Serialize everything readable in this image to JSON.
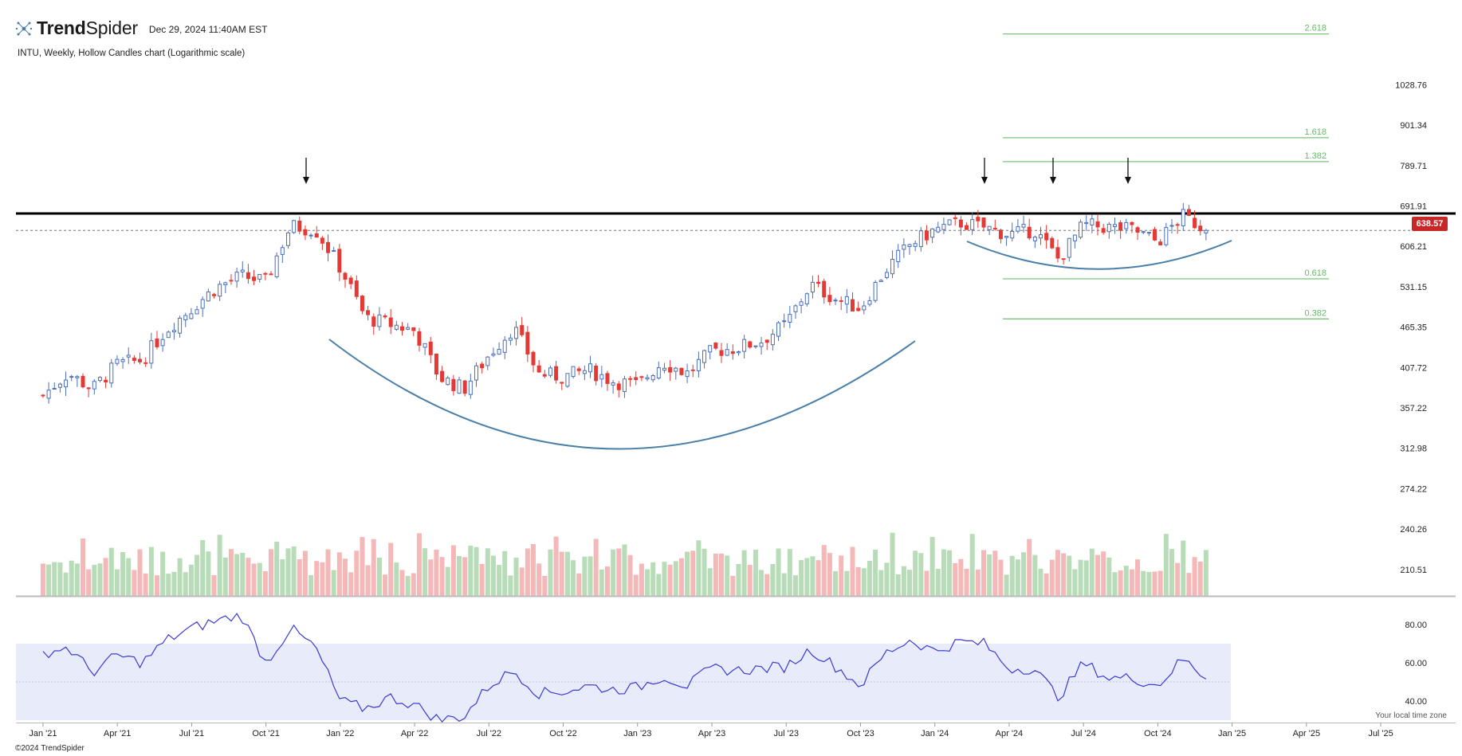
{
  "header": {
    "brand_bold": "Trend",
    "brand_regular": "Spider",
    "datetime": "Dec 29, 2024 11:40AM EST",
    "subtitle": "INTU, Weekly, Hollow Candles chart (Logarithmic scale)"
  },
  "footer": {
    "copyright": "©2024 TrendSpider",
    "timezone_label": "Your local time zone"
  },
  "colors": {
    "up": "#4a6fbd",
    "down": "#e53935",
    "volume_up": "#b8dcb8",
    "volume_down": "#f5b8b8",
    "fib": "#7cc47c",
    "arc": "#4a7fa8",
    "rsi_line": "#3a3ad0",
    "rsi_band": "#e8ecfa"
  },
  "chart_data": {
    "type": "candlestick",
    "symbol": "INTU",
    "timeframe": "Weekly",
    "scale": "log",
    "last_price": 638.57,
    "last_price_label": "638.57",
    "price_axis_ticks": [
      "1028.76",
      "901.34",
      "789.71",
      "691.91",
      "606.21",
      "531.15",
      "465.35",
      "407.72",
      "357.22",
      "312.98",
      "274.22",
      "240.26",
      "210.51"
    ],
    "time_axis_ticks": [
      "Jan '21",
      "Apr '21",
      "Jul '21",
      "Oct '21",
      "Jan '22",
      "Apr '22",
      "Jul '22",
      "Oct '22",
      "Jan '23",
      "Apr '23",
      "Jul '23",
      "Oct '23",
      "Jan '24",
      "Apr '24",
      "Jul '24",
      "Oct '24",
      "Jan '25",
      "Apr '25",
      "Jul '25"
    ],
    "price_anchors": [
      [
        "Jan '21",
        372
      ],
      [
        "Feb '21",
        400
      ],
      [
        "Mar '21",
        380
      ],
      [
        "Apr '21",
        412
      ],
      [
        "May '21",
        418
      ],
      [
        "Jun '21",
        462
      ],
      [
        "Jul '21",
        495
      ],
      [
        "Aug '21",
        530
      ],
      [
        "Sep '21",
        550
      ],
      [
        "Oct '21",
        540
      ],
      [
        "Nov '21",
        648
      ],
      [
        "Dec '21",
        640
      ],
      [
        "Jan '22",
        565
      ],
      [
        "Feb '22",
        480
      ],
      [
        "Mar '22",
        470
      ],
      [
        "Apr '22",
        460
      ],
      [
        "May '22",
        395
      ],
      [
        "Jun '22",
        380
      ],
      [
        "Jul '22",
        425
      ],
      [
        "Aug '22",
        465
      ],
      [
        "Sep '22",
        400
      ],
      [
        "Oct '22",
        395
      ],
      [
        "Nov '22",
        405
      ],
      [
        "Dec '22",
        390
      ],
      [
        "Jan '23",
        385
      ],
      [
        "Feb '23",
        415
      ],
      [
        "Mar '23",
        400
      ],
      [
        "Apr '23",
        430
      ],
      [
        "May '23",
        435
      ],
      [
        "Jun '23",
        445
      ],
      [
        "Jul '23",
        470
      ],
      [
        "Aug '23",
        535
      ],
      [
        "Sep '23",
        510
      ],
      [
        "Oct '23",
        495
      ],
      [
        "Nov '23",
        560
      ],
      [
        "Dec '23",
        610
      ],
      [
        "Jan '24",
        640
      ],
      [
        "Feb '24",
        655
      ],
      [
        "Mar '24",
        645
      ],
      [
        "Apr '24",
        630
      ],
      [
        "May '24",
        640
      ],
      [
        "Jun '24",
        580
      ],
      [
        "Jul '24",
        650
      ],
      [
        "Aug '24",
        645
      ],
      [
        "Sep '24",
        640
      ],
      [
        "Oct '24",
        615
      ],
      [
        "Nov '24",
        670
      ],
      [
        "Dec '24",
        638.57
      ]
    ],
    "resistance_level": 675,
    "fibonacci_levels": [
      {
        "label": "2.618",
        "price": 1215
      },
      {
        "label": "1.618",
        "price": 865
      },
      {
        "label": "1.382",
        "price": 800
      },
      {
        "label": "0.618",
        "price": 545
      },
      {
        "label": "0.382",
        "price": 478
      }
    ],
    "rsi": {
      "axis_ticks": [
        "80.00",
        "60.00",
        "40.00"
      ],
      "band": [
        30,
        70
      ],
      "anchors": [
        [
          "Jan '21",
          65
        ],
        [
          "Feb '21",
          68
        ],
        [
          "Mar '21",
          55
        ],
        [
          "Apr '21",
          64
        ],
        [
          "May '21",
          60
        ],
        [
          "Jun '21",
          72
        ],
        [
          "Jul '21",
          78
        ],
        [
          "Aug '21",
          82
        ],
        [
          "Sep '21",
          85
        ],
        [
          "Oct '21",
          60
        ],
        [
          "Nov '21",
          78
        ],
        [
          "Dec '21",
          68
        ],
        [
          "Jan '22",
          40
        ],
        [
          "Feb '22",
          36
        ],
        [
          "Mar '22",
          42
        ],
        [
          "Apr '22",
          38
        ],
        [
          "May '22",
          30
        ],
        [
          "Jun '22",
          32
        ],
        [
          "Jul '22",
          48
        ],
        [
          "Aug '22",
          56
        ],
        [
          "Sep '22",
          44
        ],
        [
          "Oct '22",
          45
        ],
        [
          "Nov '22",
          48
        ],
        [
          "Dec '22",
          46
        ],
        [
          "Jan '23",
          47
        ],
        [
          "Feb '23",
          53
        ],
        [
          "Mar '23",
          48
        ],
        [
          "Apr '23",
          57
        ],
        [
          "May '23",
          56
        ],
        [
          "Jun '23",
          57
        ],
        [
          "Jul '23",
          58
        ],
        [
          "Aug '23",
          67
        ],
        [
          "Sep '23",
          58
        ],
        [
          "Oct '23",
          48
        ],
        [
          "Nov '23",
          65
        ],
        [
          "Dec '23",
          72
        ],
        [
          "Jan '24",
          66
        ],
        [
          "Feb '24",
          71
        ],
        [
          "Mar '24",
          70
        ],
        [
          "Apr '24",
          57
        ],
        [
          "May '24",
          57
        ],
        [
          "Jun '24",
          42
        ],
        [
          "Jul '24",
          60
        ],
        [
          "Aug '24",
          52
        ],
        [
          "Sep '24",
          52
        ],
        [
          "Oct '24",
          48
        ],
        [
          "Nov '24",
          62
        ],
        [
          "Dec '24",
          52
        ]
      ]
    }
  }
}
